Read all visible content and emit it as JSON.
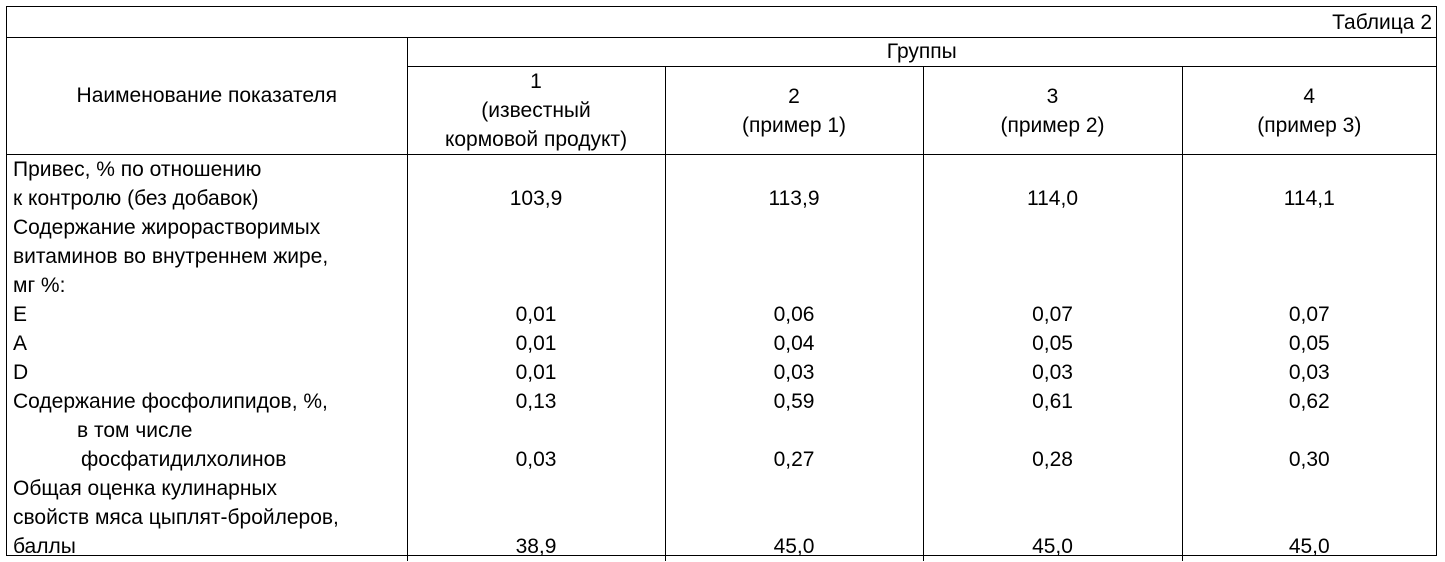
{
  "caption": "Таблица 2",
  "header": {
    "indicator": "Наименование показателя",
    "groups": "Группы",
    "columns": [
      [
        "1",
        "(известный",
        "кормовой продукт)"
      ],
      [
        "2",
        "(пример 1)"
      ],
      [
        "3",
        "(пример 2)"
      ],
      [
        "4",
        "(пример 3)"
      ]
    ]
  },
  "labels": [
    "Привес, % по отношению",
    "к контролю (без добавок)",
    "Содержание жирорастворимых",
    "витаминов во внутреннем жире,",
    "мг %:",
    "E",
    "A",
    "D",
    "Содержание фосфолипидов, %,",
    "в том числе",
    "фосфатидилхолинов",
    "Общая оценка кулинарных",
    "свойств мяса цыплят-бройлеров,",
    "баллы"
  ],
  "values": [
    [
      "",
      "103,9",
      "",
      "",
      "",
      "0,01",
      "0,01",
      "0,01",
      "0,13",
      "",
      "0,03",
      "",
      "",
      "38,9"
    ],
    [
      "",
      "113,9",
      "",
      "",
      "",
      "0,06",
      "0,04",
      "0,03",
      "0,59",
      "",
      "0,27",
      "",
      "",
      "45,0"
    ],
    [
      "",
      "114,0",
      "",
      "",
      "",
      "0,07",
      "0,05",
      "0,03",
      "0,61",
      "",
      "0,28",
      "",
      "",
      "45,0"
    ],
    [
      "",
      "114,1",
      "",
      "",
      "",
      "0,07",
      "0,05",
      "0,03",
      "0,62",
      "",
      "0,30",
      "",
      "",
      "45,0"
    ]
  ]
}
